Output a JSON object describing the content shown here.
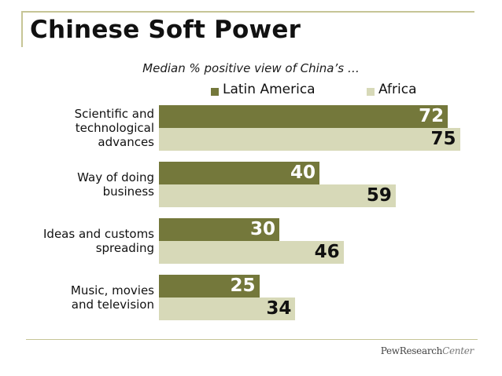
{
  "title": "Chinese Soft Power",
  "colors": {
    "latin_america": "#74783b",
    "africa": "#d7d9b8",
    "rule": "#c6c596"
  },
  "logo": {
    "part1": "PewResearch",
    "part2": "Center"
  },
  "chart_data": {
    "type": "bar",
    "orientation": "horizontal",
    "title": "Median % positive view of China’s …",
    "categories": [
      "Scientific and\ntechnological\nadvances",
      "Way of doing\nbusiness",
      "Ideas and customs\nspreading",
      "Music, movies\nand television"
    ],
    "series": [
      {
        "name": "Latin America",
        "values": [
          72,
          40,
          30,
          25
        ]
      },
      {
        "name": "Africa",
        "values": [
          75,
          59,
          46,
          34
        ]
      }
    ],
    "xlim": [
      0,
      100
    ],
    "legend": "top",
    "grid": false
  }
}
